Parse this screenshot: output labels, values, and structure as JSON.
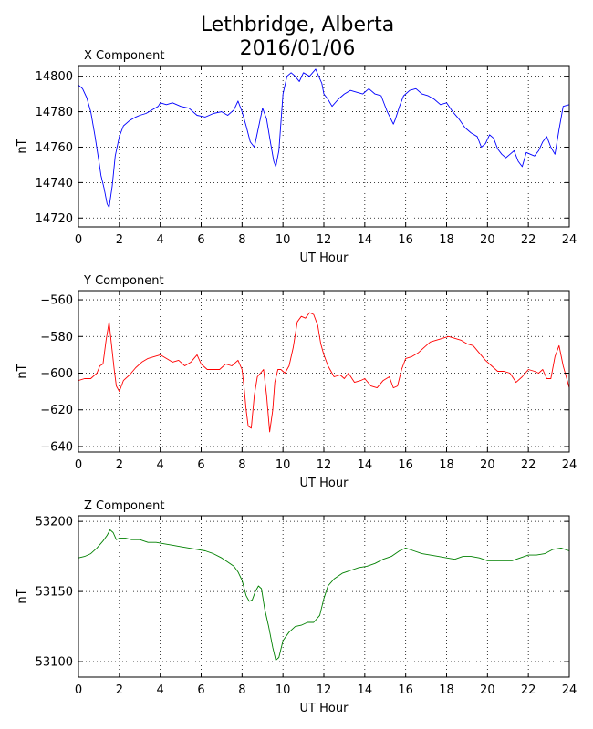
{
  "figure": {
    "title_line1": "Lethbridge, Alberta",
    "title_line2": "2016/01/06"
  },
  "chart_data": [
    {
      "type": "line",
      "title": "X Component",
      "xlabel": "UT Hour",
      "ylabel": "nT",
      "xlim": [
        0,
        24
      ],
      "ylim": [
        14715,
        14806
      ],
      "xticks": [
        0,
        2,
        4,
        6,
        8,
        10,
        12,
        14,
        16,
        18,
        20,
        22,
        24
      ],
      "yticks": [
        14720,
        14740,
        14760,
        14780,
        14800
      ],
      "grid": true,
      "color": "#0000ff",
      "series": [
        {
          "x": [
            0,
            0.2,
            0.4,
            0.6,
            0.8,
            1.0,
            1.1,
            1.25,
            1.4,
            1.5,
            1.65,
            1.8,
            2.0,
            2.2,
            2.5,
            2.8,
            3.0,
            3.3,
            3.6,
            3.9,
            4.0,
            4.3,
            4.6,
            5.0,
            5.4,
            5.8,
            6.2,
            6.6,
            7.0,
            7.3,
            7.6,
            7.8,
            8.0,
            8.2,
            8.4,
            8.6,
            8.8,
            9.0,
            9.2,
            9.4,
            9.55,
            9.65,
            9.8,
            10.0,
            10.2,
            10.4,
            10.6,
            10.8,
            11.0,
            11.3,
            11.6,
            11.9,
            12.0,
            12.2,
            12.4,
            12.7,
            13.0,
            13.3,
            13.6,
            13.9,
            14.2,
            14.5,
            14.8,
            15.1,
            15.4,
            15.5,
            15.7,
            15.9,
            16.2,
            16.5,
            16.8,
            17.1,
            17.4,
            17.7,
            18.0,
            18.3,
            18.6,
            18.9,
            19.2,
            19.5,
            19.7,
            19.9,
            20.1,
            20.3,
            20.5,
            20.7,
            20.9,
            21.1,
            21.3,
            21.5,
            21.7,
            21.9,
            22.1,
            22.3,
            22.5,
            22.7,
            22.9,
            23.1,
            23.3,
            23.5,
            23.7,
            24.0
          ],
          "y": [
            14795,
            14793,
            14788,
            14780,
            14767,
            14752,
            14744,
            14737,
            14728,
            14726,
            14738,
            14755,
            14766,
            14772,
            14775,
            14777,
            14778,
            14779,
            14781,
            14783,
            14785,
            14784,
            14785,
            14783,
            14782,
            14778,
            14777,
            14779,
            14780,
            14778,
            14781,
            14786,
            14780,
            14772,
            14763,
            14760,
            14771,
            14782,
            14776,
            14762,
            14752,
            14749,
            14758,
            14790,
            14800,
            14802,
            14800,
            14797,
            14802,
            14800,
            14804,
            14796,
            14790,
            14787,
            14783,
            14787,
            14790,
            14792,
            14791,
            14790,
            14793,
            14790,
            14789,
            14780,
            14773,
            14776,
            14783,
            14789,
            14792,
            14793,
            14790,
            14789,
            14787,
            14784,
            14785,
            14780,
            14776,
            14771,
            14768,
            14766,
            14760,
            14762,
            14767,
            14765,
            14759,
            14756,
            14754,
            14756,
            14758,
            14752,
            14749,
            14757,
            14756,
            14755,
            14758,
            14763,
            14766,
            14760,
            14756,
            14770,
            14783,
            14784
          ]
        }
      ]
    },
    {
      "type": "line",
      "title": "Y Component",
      "xlabel": "UT Hour",
      "ylabel": "nT",
      "xlim": [
        0,
        24
      ],
      "ylim": [
        -643,
        -555
      ],
      "xticks": [
        0,
        2,
        4,
        6,
        8,
        10,
        12,
        14,
        16,
        18,
        20,
        22,
        24
      ],
      "yticks": [
        -640,
        -620,
        -600,
        -580,
        -560
      ],
      "grid": true,
      "color": "#ff0000",
      "series": [
        {
          "x": [
            0,
            0.3,
            0.6,
            0.9,
            1.05,
            1.2,
            1.35,
            1.5,
            1.6,
            1.75,
            1.85,
            2.0,
            2.2,
            2.5,
            2.8,
            3.1,
            3.4,
            3.7,
            4.0,
            4.3,
            4.6,
            4.9,
            5.2,
            5.5,
            5.8,
            6.0,
            6.3,
            6.6,
            6.9,
            7.2,
            7.5,
            7.8,
            8.0,
            8.1,
            8.2,
            8.3,
            8.45,
            8.6,
            8.75,
            8.9,
            9.05,
            9.2,
            9.35,
            9.5,
            9.6,
            9.75,
            9.9,
            10.1,
            10.3,
            10.5,
            10.7,
            10.9,
            11.1,
            11.3,
            11.5,
            11.7,
            11.85,
            12.0,
            12.2,
            12.5,
            12.8,
            13.0,
            13.2,
            13.5,
            13.8,
            14.0,
            14.3,
            14.6,
            14.9,
            15.2,
            15.4,
            15.6,
            15.8,
            16.0,
            16.3,
            16.6,
            16.9,
            17.2,
            17.5,
            17.8,
            18.1,
            18.4,
            18.7,
            19.0,
            19.3,
            19.6,
            19.9,
            20.2,
            20.5,
            20.8,
            21.1,
            21.4,
            21.7,
            22.0,
            22.3,
            22.5,
            22.7,
            22.9,
            23.1,
            23.3,
            23.5,
            23.7,
            23.9,
            24.0
          ],
          "y": [
            -604,
            -603,
            -603,
            -600,
            -596,
            -595,
            -582,
            -572,
            -583,
            -598,
            -607,
            -610,
            -604,
            -601,
            -597,
            -594,
            -592,
            -591,
            -590,
            -592,
            -594,
            -593,
            -596,
            -594,
            -590,
            -595,
            -598,
            -598,
            -598,
            -595,
            -596,
            -593,
            -598,
            -608,
            -620,
            -629,
            -630,
            -612,
            -602,
            -600,
            -598,
            -612,
            -632,
            -620,
            -605,
            -598,
            -598,
            -600,
            -596,
            -586,
            -572,
            -569,
            -570,
            -567,
            -568,
            -574,
            -584,
            -590,
            -596,
            -602,
            -601,
            -603,
            -600,
            -605,
            -604,
            -603,
            -607,
            -608,
            -604,
            -602,
            -608,
            -607,
            -598,
            -592,
            -591,
            -589,
            -586,
            -583,
            -582,
            -581,
            -580,
            -581,
            -582,
            -584,
            -585,
            -589,
            -593,
            -596,
            -599,
            -599,
            -600,
            -605,
            -602,
            -598,
            -599,
            -600,
            -598,
            -603,
            -603,
            -591,
            -585,
            -596,
            -604,
            -608
          ]
        }
      ]
    },
    {
      "type": "line",
      "title": "Z Component",
      "xlabel": "UT Hour",
      "ylabel": "nT",
      "xlim": [
        0,
        24
      ],
      "ylim": [
        53089,
        53204
      ],
      "xticks": [
        0,
        2,
        4,
        6,
        8,
        10,
        12,
        14,
        16,
        18,
        20,
        22,
        24
      ],
      "yticks": [
        53100,
        53150,
        53200
      ],
      "grid": true,
      "color": "#008000",
      "series": [
        {
          "x": [
            0,
            0.3,
            0.6,
            0.9,
            1.2,
            1.4,
            1.55,
            1.7,
            1.85,
            2.0,
            2.3,
            2.6,
            3.0,
            3.4,
            3.8,
            4.2,
            4.6,
            5.0,
            5.4,
            5.8,
            6.2,
            6.6,
            7.0,
            7.3,
            7.6,
            7.8,
            8.0,
            8.2,
            8.35,
            8.5,
            8.65,
            8.8,
            8.95,
            9.1,
            9.3,
            9.5,
            9.65,
            9.8,
            10.0,
            10.3,
            10.6,
            10.9,
            11.2,
            11.5,
            11.8,
            12.0,
            12.2,
            12.5,
            12.9,
            13.3,
            13.7,
            14.1,
            14.5,
            14.9,
            15.3,
            15.7,
            16.0,
            16.4,
            16.8,
            17.2,
            17.6,
            18.0,
            18.4,
            18.8,
            19.2,
            19.6,
            20.0,
            20.4,
            20.8,
            21.2,
            21.6,
            22.0,
            22.4,
            22.8,
            23.2,
            23.6,
            24.0
          ],
          "y": [
            53174,
            53175,
            53177,
            53181,
            53186,
            53190,
            53194,
            53192,
            53187,
            53188,
            53188,
            53187,
            53187,
            53185,
            53185,
            53184,
            53183,
            53182,
            53181,
            53180,
            53179,
            53177,
            53174,
            53171,
            53168,
            53164,
            53158,
            53147,
            53143,
            53144,
            53150,
            53154,
            53152,
            53138,
            53125,
            53110,
            53101,
            53103,
            53115,
            53121,
            53125,
            53126,
            53128,
            53128,
            53133,
            53145,
            53154,
            53159,
            53163,
            53165,
            53167,
            53168,
            53170,
            53173,
            53175,
            53179,
            53181,
            53179,
            53177,
            53176,
            53175,
            53174,
            53173,
            53175,
            53175,
            53174,
            53172,
            53172,
            53172,
            53172,
            53174,
            53176,
            53176,
            53177,
            53180,
            53181,
            53179
          ]
        }
      ]
    }
  ]
}
